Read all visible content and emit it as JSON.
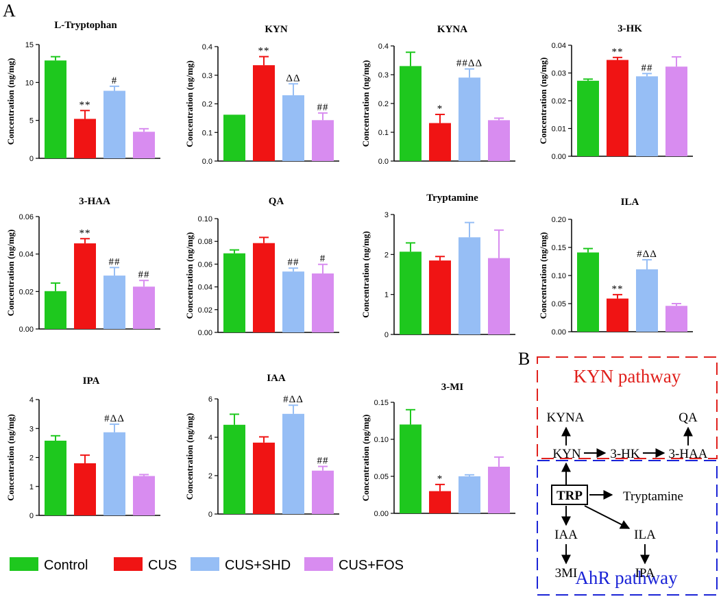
{
  "figure": {
    "panel_a_label": "A",
    "panel_b_label": "B",
    "y_axis_label": "Concentration (ng/mg)"
  },
  "legend": [
    {
      "label": "Control",
      "color": "#1ec81e"
    },
    {
      "label": "CUS",
      "color": "#f01414"
    },
    {
      "label": "CUS+SHD",
      "color": "#96bef5"
    },
    {
      "label": "CUS+FOS",
      "color": "#d88cf0"
    }
  ],
  "chart_data": [
    {
      "type": "bar",
      "title": "L-Tryptophan",
      "ylabel": "Concentration (ng/mg)",
      "categories": [
        "Control",
        "CUS",
        "CUS+SHD",
        "CUS+FOS"
      ],
      "values": [
        12.9,
        5.2,
        8.9,
        3.5
      ],
      "errors": [
        0.5,
        1.1,
        0.6,
        0.4
      ],
      "annotations": [
        "",
        "**",
        "#",
        ""
      ],
      "ylim": [
        0,
        15
      ],
      "ticks": [
        "0",
        "5",
        "10",
        "15"
      ]
    },
    {
      "type": "bar",
      "title": "KYN",
      "ylabel": "Concentration (ng/mg)",
      "categories": [
        "Control",
        "CUS",
        "CUS+SHD",
        "CUS+FOS"
      ],
      "values": [
        0.162,
        0.335,
        0.23,
        0.143
      ],
      "errors": [
        0.0,
        0.03,
        0.04,
        0.025
      ],
      "annotations": [
        "",
        "**",
        "ΔΔ",
        "##"
      ],
      "ylim": [
        0,
        0.4
      ],
      "ticks": [
        "0.0",
        "0.1",
        "0.2",
        "0.3",
        "0.4"
      ]
    },
    {
      "type": "bar",
      "title": "KYNA",
      "ylabel": "Concentration (ng/mg)",
      "categories": [
        "Control",
        "CUS",
        "CUS+SHD",
        "CUS+FOS"
      ],
      "values": [
        0.33,
        0.132,
        0.29,
        0.142
      ],
      "errors": [
        0.048,
        0.03,
        0.03,
        0.007
      ],
      "annotations": [
        "",
        "*",
        "##ΔΔ",
        ""
      ],
      "ylim": [
        0,
        0.4
      ],
      "ticks": [
        "0.0",
        "0.1",
        "0.2",
        "0.3",
        "0.4"
      ]
    },
    {
      "type": "bar",
      "title": "3-HK",
      "ylabel": "Concentration (ng/mg)",
      "categories": [
        "Control",
        "CUS",
        "CUS+SHD",
        "CUS+FOS"
      ],
      "values": [
        0.0272,
        0.0347,
        0.0288,
        0.0323
      ],
      "errors": [
        0.0006,
        0.0009,
        0.001,
        0.0035
      ],
      "annotations": [
        "",
        "**",
        "##",
        ""
      ],
      "ylim": [
        0,
        0.04
      ],
      "ticks": [
        "0.00",
        "0.01",
        "0.02",
        "0.03",
        "0.04"
      ]
    },
    {
      "type": "bar",
      "title": "3-HAA",
      "ylabel": "Concentration (ng/mg)",
      "categories": [
        "Control",
        "CUS",
        "CUS+SHD",
        "CUS+FOS"
      ],
      "values": [
        0.0202,
        0.0457,
        0.0285,
        0.0226
      ],
      "errors": [
        0.0043,
        0.0025,
        0.0043,
        0.0033
      ],
      "annotations": [
        "",
        "**",
        "##",
        "##"
      ],
      "ylim": [
        0,
        0.06
      ],
      "ticks": [
        "0.00",
        "0.02",
        "0.04",
        "0.06"
      ]
    },
    {
      "type": "bar",
      "title": "QA",
      "ylabel": "Concentration (ng/mg)",
      "categories": [
        "Control",
        "CUS",
        "CUS+SHD",
        "CUS+FOS"
      ],
      "values": [
        0.0695,
        0.0785,
        0.0535,
        0.0518
      ],
      "errors": [
        0.003,
        0.005,
        0.003,
        0.008
      ],
      "annotations": [
        "",
        "",
        "##",
        "#"
      ],
      "ylim": [
        0,
        0.1
      ],
      "ticks": [
        "0.00",
        "0.02",
        "0.04",
        "0.06",
        "0.08",
        "0.10"
      ]
    },
    {
      "type": "bar",
      "title": "Tryptamine",
      "ylabel": "Concentration (ng/mg)",
      "categories": [
        "Control",
        "CUS",
        "CUS+SHD",
        "CUS+FOS"
      ],
      "values": [
        2.07,
        1.85,
        2.43,
        1.91
      ],
      "errors": [
        0.22,
        0.1,
        0.37,
        0.7
      ],
      "annotations": [
        "",
        "",
        "",
        ""
      ],
      "ylim": [
        0,
        3
      ],
      "ticks": [
        "0",
        "1",
        "2",
        "3"
      ]
    },
    {
      "type": "bar",
      "title": "ILA",
      "ylabel": "Concentration (ng/mg)",
      "categories": [
        "Control",
        "CUS",
        "CUS+SHD",
        "CUS+FOS"
      ],
      "values": [
        0.141,
        0.059,
        0.111,
        0.046
      ],
      "errors": [
        0.007,
        0.007,
        0.017,
        0.004
      ],
      "annotations": [
        "",
        "**",
        "#ΔΔ",
        ""
      ],
      "ylim": [
        0,
        0.2
      ],
      "ticks": [
        "0.00",
        "0.05",
        "0.10",
        "0.15",
        "0.20"
      ]
    },
    {
      "type": "bar",
      "title": "IPA",
      "ylabel": "Concentration (ng/mg)",
      "categories": [
        "Control",
        "CUS",
        "CUS+SHD",
        "CUS+FOS"
      ],
      "values": [
        2.58,
        1.8,
        2.87,
        1.36
      ],
      "errors": [
        0.17,
        0.28,
        0.28,
        0.05
      ],
      "annotations": [
        "",
        "",
        "#ΔΔ",
        ""
      ],
      "ylim": [
        0,
        4
      ],
      "ticks": [
        "0",
        "1",
        "2",
        "3",
        "4"
      ]
    },
    {
      "type": "bar",
      "title": "IAA",
      "ylabel": "Concentration (ng/mg)",
      "categories": [
        "Control",
        "CUS",
        "CUS+SHD",
        "CUS+FOS"
      ],
      "values": [
        4.65,
        3.72,
        5.22,
        2.26
      ],
      "errors": [
        0.55,
        0.3,
        0.45,
        0.22
      ],
      "annotations": [
        "",
        "",
        "#ΔΔ",
        "##"
      ],
      "ylim": [
        0,
        6
      ],
      "ticks": [
        "0",
        "2",
        "4",
        "6"
      ]
    },
    {
      "type": "bar",
      "title": "3-MI",
      "ylabel": "Concentration (ng/mg)",
      "categories": [
        "Control",
        "CUS",
        "CUS+SHD",
        "CUS+FOS"
      ],
      "values": [
        0.12,
        0.03,
        0.05,
        0.063
      ],
      "errors": [
        0.02,
        0.009,
        0.002,
        0.013
      ],
      "annotations": [
        "",
        "*",
        "",
        ""
      ],
      "ylim": [
        0,
        0.15
      ],
      "ticks": [
        "0.00",
        "0.05",
        "0.10",
        "0.15"
      ]
    }
  ],
  "pathway": {
    "kyn_title": "KYN pathway",
    "ahr_title": "AhR pathway",
    "nodes": {
      "kyna": "KYNA",
      "qa": "QA",
      "kyn": "KYN",
      "hk": "3-HK",
      "haa": "3-HAA",
      "trp": "TRP",
      "tryptamine": "Tryptamine",
      "iaa": "IAA",
      "ila": "ILA",
      "mi": "3MI",
      "ipa": "IPA"
    },
    "colors": {
      "kyn_box": "#e0201c",
      "ahr_box": "#1a23d6"
    }
  }
}
